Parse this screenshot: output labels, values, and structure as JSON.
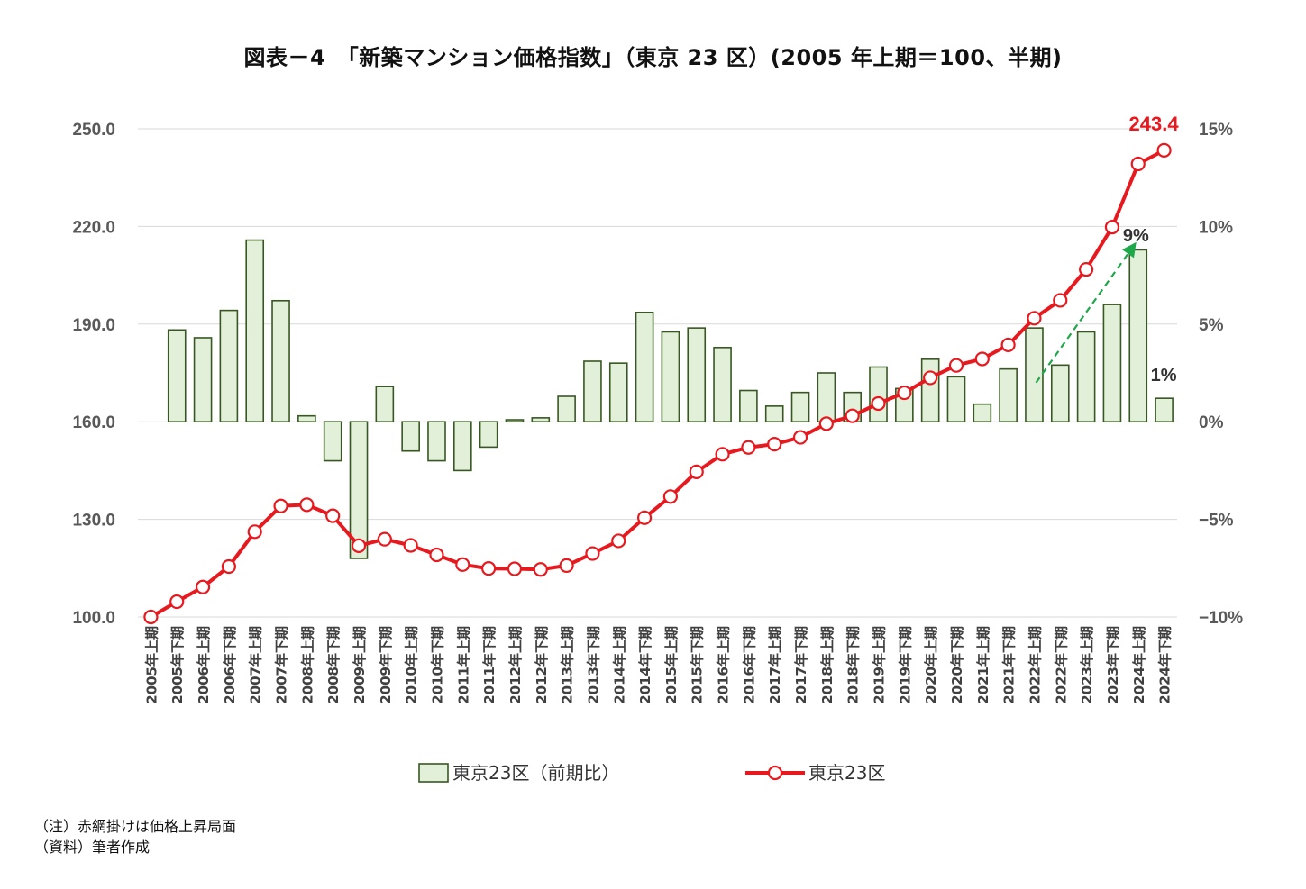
{
  "chart_data": {
    "type": "bar+line",
    "title": "図表－4　「新築マンション価格指数」（東京 23 区）(2005 年上期＝100、半期)",
    "categories": [
      "2005年上期",
      "2005年下期",
      "2006年上期",
      "2006年下期",
      "2007年上期",
      "2007年下期",
      "2008年上期",
      "2008年下期",
      "2009年上期",
      "2009年下期",
      "2010年上期",
      "2010年下期",
      "2011年上期",
      "2011年下期",
      "2012年上期",
      "2012年下期",
      "2013年上期",
      "2013年下期",
      "2014年上期",
      "2014年下期",
      "2015年上期",
      "2015年下期",
      "2016年上期",
      "2016年下期",
      "2017年上期",
      "2017年下期",
      "2018年上期",
      "2018年下期",
      "2019年上期",
      "2019年下期",
      "2020年上期",
      "2020年下期",
      "2021年上期",
      "2021年下期",
      "2022年上期",
      "2022年下期",
      "2023年上期",
      "2023年下期",
      "2024年上期",
      "2024年下期"
    ],
    "y_left": {
      "min": 100,
      "max": 250,
      "ticks": [
        "100.0",
        "130.0",
        "160.0",
        "190.0",
        "220.0",
        "250.0"
      ]
    },
    "y_right": {
      "min": -10,
      "max": 15,
      "ticks": [
        "−10%",
        "−5%",
        "0%",
        "5%",
        "10%",
        "15%"
      ]
    },
    "series": [
      {
        "name": "東京23区（前期比）",
        "type": "bar",
        "axis": "right",
        "unit": "%",
        "values": [
          null,
          4.7,
          4.3,
          5.7,
          9.3,
          6.2,
          0.3,
          -2.0,
          -7.0,
          1.8,
          -1.5,
          -2.0,
          -2.5,
          -1.3,
          0.1,
          0.2,
          1.3,
          3.1,
          3.0,
          5.6,
          4.6,
          4.8,
          3.8,
          1.6,
          0.8,
          1.5,
          2.5,
          1.5,
          2.8,
          1.7,
          3.2,
          2.3,
          0.9,
          2.7,
          4.8,
          2.9,
          4.6,
          6.0,
          8.8,
          1.2
        ]
      },
      {
        "name": "東京23区",
        "type": "line",
        "axis": "left",
        "values": [
          100.0,
          104.7,
          109.2,
          115.5,
          126.2,
          134.1,
          134.5,
          131.1,
          121.9,
          123.9,
          122.0,
          119.1,
          116.1,
          114.9,
          114.8,
          114.6,
          115.8,
          119.5,
          123.4,
          130.5,
          137.0,
          144.6,
          150.0,
          152.1,
          153.1,
          155.2,
          159.4,
          161.8,
          165.6,
          168.9,
          173.5,
          177.3,
          179.3,
          183.6,
          191.8,
          197.3,
          206.8,
          219.8,
          239.2,
          243.4
        ]
      }
    ],
    "annotations": {
      "last_value": "243.4",
      "bar_2024_1": "9%",
      "bar_2024_2": "1%"
    },
    "legend": [
      "東京23区（前期比）",
      "東京23区"
    ]
  },
  "colors": {
    "bar_fill": "#e2f0d9",
    "bar_stroke": "#385723",
    "line": "#e8191e",
    "arrow": "#1ea84a",
    "grid": "#d9d9d9"
  },
  "notes": {
    "line1": "（注）赤網掛けは価格上昇局面",
    "line2": "（資料）筆者作成"
  }
}
